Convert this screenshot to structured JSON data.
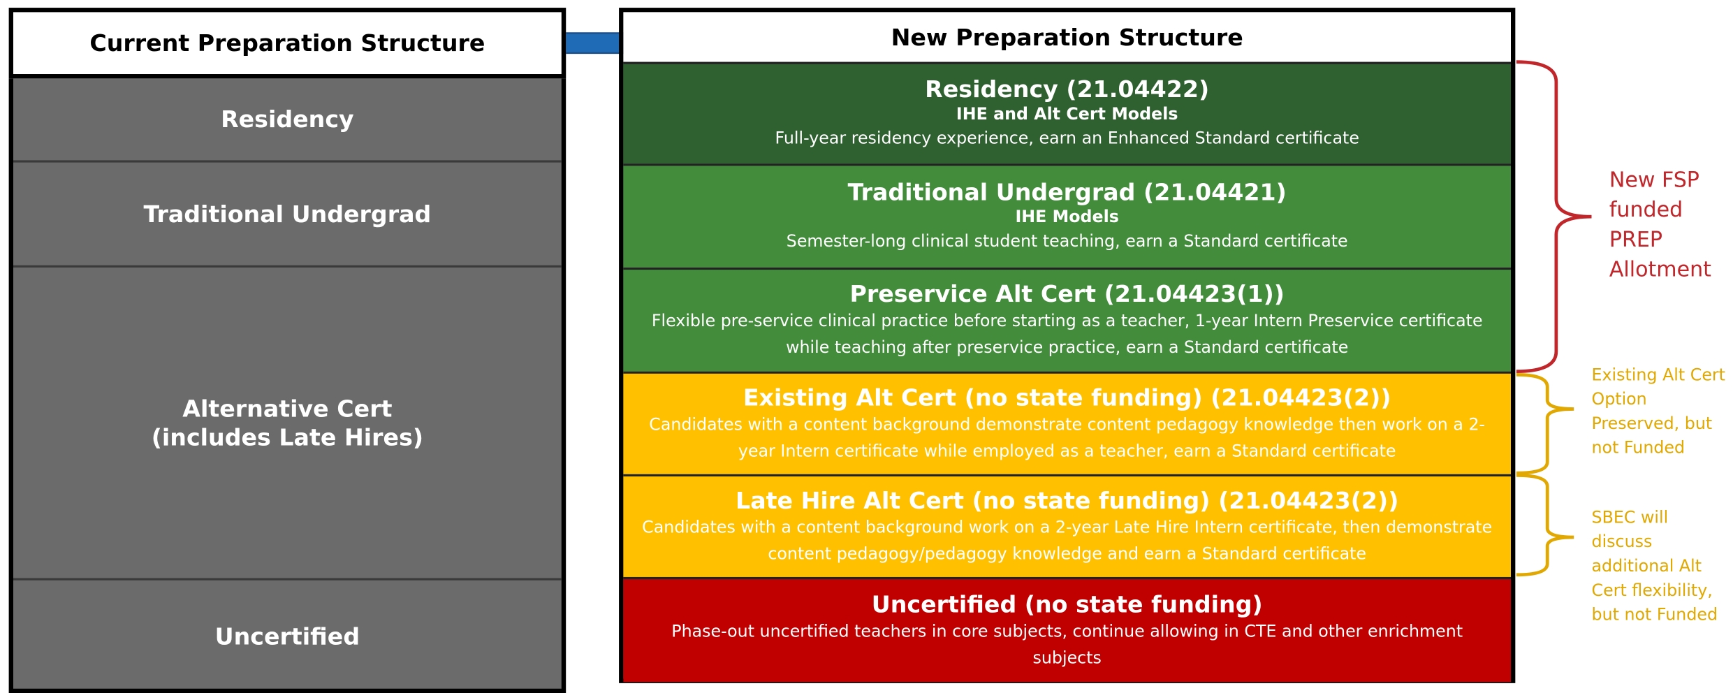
{
  "current": {
    "title": "Current Preparation Structure",
    "rows": [
      {
        "lines": [
          "Residency"
        ]
      },
      {
        "lines": [
          "Traditional Undergrad"
        ]
      },
      {
        "lines": [
          "Alternative Cert",
          "(includes Late Hires)"
        ]
      },
      {
        "lines": [
          "Uncertified"
        ]
      }
    ]
  },
  "new": {
    "title": "New Preparation Structure",
    "rows": [
      {
        "title": "Residency (21.04422)",
        "subtitle": "IHE and Alt Cert Models",
        "description": "Full-year residency experience, earn an Enhanced Standard certificate"
      },
      {
        "title": "Traditional Undergrad (21.04421)",
        "subtitle": "IHE Models",
        "description": "Semester-long clinical student teaching, earn a Standard certificate"
      },
      {
        "title": "Preservice Alt Cert (21.04423(1))",
        "description": "Flexible pre-service clinical practice before starting as a teacher, 1-year Intern Preservice certificate while teaching after preservice practice, earn a Standard certificate"
      },
      {
        "title": "Existing Alt Cert (no state funding) (21.04423(2))",
        "description": "Candidates with a content background demonstrate content pedagogy knowledge then work on a 2-year Intern certificate while employed as a teacher, earn a Standard certificate"
      },
      {
        "title": "Late Hire Alt Cert (no state funding) (21.04423(2))",
        "description": "Candidates with a content background work on a 2-year Late Hire Intern certificate, then demonstrate content pedagogy/pedagogy knowledge and earn a Standard certificate"
      },
      {
        "title": "Uncertified (no state funding)",
        "description": "Phase-out uncertified teachers in core subjects, continue allowing in CTE and other enrichment subjects"
      }
    ]
  },
  "notes": [
    {
      "lines": [
        "New FSP",
        "funded",
        "PREP",
        "Allotment"
      ]
    },
    {
      "lines": [
        "Existing Alt Cert",
        "Option",
        "Preserved, but",
        "not Funded"
      ]
    },
    {
      "lines": [
        "SBEC will",
        "discuss",
        "additional Alt",
        "Cert flexibility,",
        "but not Funded"
      ]
    }
  ]
}
